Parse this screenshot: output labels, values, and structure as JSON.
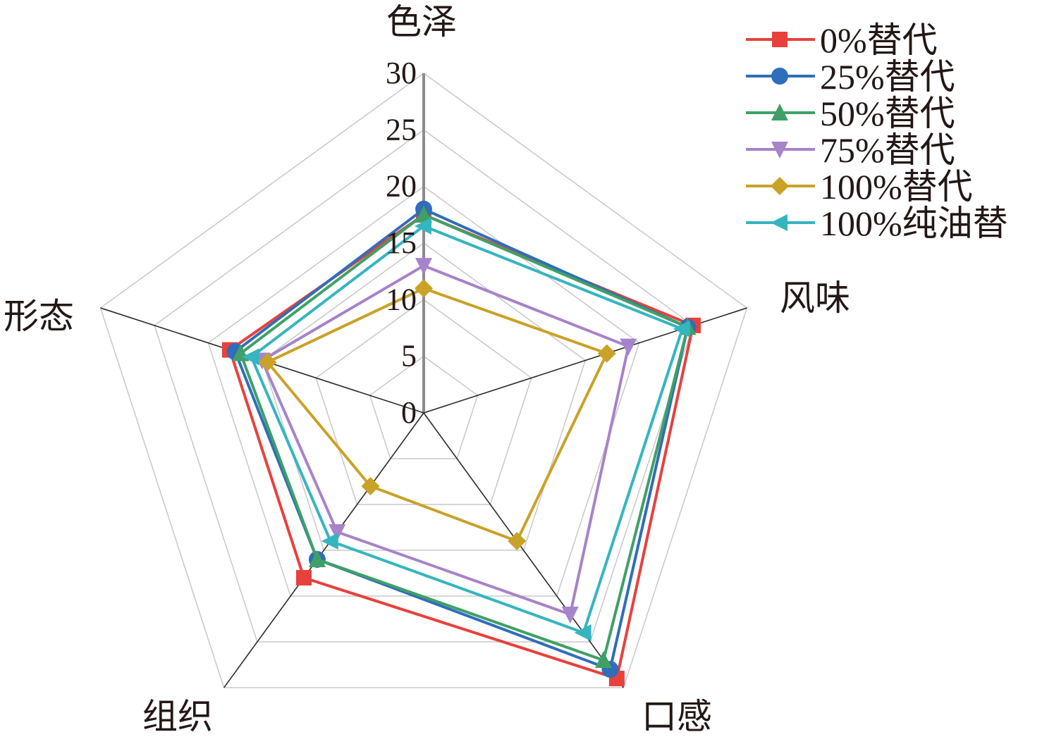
{
  "chart_data": {
    "type": "radar",
    "axes": [
      "色泽",
      "风味",
      "口感",
      "组织",
      "形态"
    ],
    "r_ticks": [
      "0",
      "5",
      "10",
      "15",
      "20",
      "25",
      "30"
    ],
    "rlim": [
      0,
      30
    ],
    "grid": true,
    "legend_position": "top-right",
    "series": [
      {
        "name": "0%替代",
        "color": "#e8413c",
        "marker": "square",
        "values": [
          17.5,
          25,
          29,
          18,
          18
        ]
      },
      {
        "name": "25%替代",
        "color": "#2f6eba",
        "marker": "circle",
        "values": [
          18,
          24.5,
          28,
          16,
          17.5
        ]
      },
      {
        "name": "50%替代",
        "color": "#3fa066",
        "marker": "triangle-up",
        "values": [
          17.5,
          24.5,
          27,
          16,
          17
        ]
      },
      {
        "name": "75%替代",
        "color": "#a783c9",
        "marker": "triangle-down",
        "values": [
          13,
          19,
          22,
          13,
          15
        ]
      },
      {
        "name": "100%替代",
        "color": "#c9a227",
        "marker": "diamond",
        "values": [
          11,
          17,
          14,
          8,
          14.5
        ]
      },
      {
        "name": "100%纯油替",
        "color": "#35b5c0",
        "marker": "triangle-left",
        "values": [
          16.5,
          24,
          24,
          14,
          16
        ]
      }
    ]
  }
}
